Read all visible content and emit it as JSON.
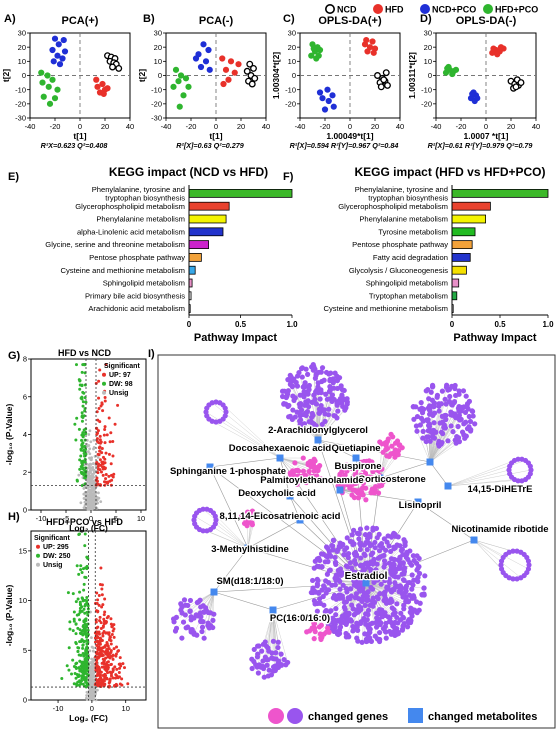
{
  "legend_top": {
    "items": [
      {
        "label": "NCD",
        "color": "#000000",
        "hollow": true
      },
      {
        "label": "HFD",
        "color": "#e8312a",
        "hollow": false
      },
      {
        "label": "NCD+PCO",
        "color": "#1f2fd6",
        "hollow": false
      },
      {
        "label": "HFD+PCO",
        "color": "#2fb52f",
        "hollow": false
      }
    ]
  },
  "chart_data": [
    {
      "id": "A",
      "type": "scatter",
      "panel_label": "A)",
      "title": "PCA(+)",
      "xlabel": "t[1]",
      "ylabel": "t[2]",
      "caption": "R²X=0.623 Q²=0.408",
      "xlim": [
        -40,
        40
      ],
      "ylim": [
        -30,
        30
      ],
      "xticks": [
        -40,
        -20,
        0,
        20,
        40
      ],
      "yticks": [
        -30,
        -20,
        -10,
        0,
        10,
        20,
        30
      ],
      "xtick_labels": [
        "-40",
        "-20",
        "0",
        "20",
        "40"
      ],
      "ytick_labels": [
        "-30",
        "-20",
        "-10",
        "0",
        "10",
        "20",
        "30"
      ],
      "series": [
        {
          "name": "NCD",
          "points": [
            [
              22,
              14
            ],
            [
              25,
              13
            ],
            [
              28,
              12
            ],
            [
              24,
              10
            ],
            [
              27,
              9
            ],
            [
              29,
              8
            ],
            [
              31,
              5
            ],
            [
              26,
              6
            ]
          ]
        },
        {
          "name": "HFD",
          "points": [
            [
              14,
              -8
            ],
            [
              18,
              -6
            ],
            [
              20,
              -10
            ],
            [
              16,
              -12
            ],
            [
              22,
              -9
            ],
            [
              19,
              -13
            ],
            [
              13,
              -3
            ]
          ]
        },
        {
          "name": "NCD+PCO",
          "points": [
            [
              -20,
              26
            ],
            [
              -17,
              22
            ],
            [
              -13,
              25
            ],
            [
              -22,
              18
            ],
            [
              -18,
              14
            ],
            [
              -14,
              12
            ],
            [
              -21,
              10
            ],
            [
              -16,
              8
            ],
            [
              -12,
              17
            ]
          ]
        },
        {
          "name": "HFD+PCO",
          "points": [
            [
              -26,
              0
            ],
            [
              -22,
              -3
            ],
            [
              -30,
              -5
            ],
            [
              -25,
              -8
            ],
            [
              -18,
              -10
            ],
            [
              -29,
              -15
            ],
            [
              -24,
              -20
            ],
            [
              -20,
              -16
            ],
            [
              -31,
              2
            ]
          ]
        }
      ]
    },
    {
      "id": "B",
      "type": "scatter",
      "panel_label": "B)",
      "title": "PCA(-)",
      "xlabel": "t[1]",
      "ylabel": "t[2]",
      "caption": "R²[X]=0.63 Q²=0.279",
      "xlim": [
        -40,
        40
      ],
      "ylim": [
        -30,
        30
      ],
      "xticks": [
        -40,
        -20,
        0,
        20,
        40
      ],
      "yticks": [
        -30,
        -20,
        -10,
        0,
        10,
        20,
        30
      ],
      "xtick_labels": [
        "-40",
        "-20",
        "0",
        "20",
        "40"
      ],
      "ytick_labels": [
        "-30",
        "-20",
        "-10",
        "0",
        "10",
        "20",
        "30"
      ],
      "series": [
        {
          "name": "NCD",
          "points": [
            [
              27,
              8
            ],
            [
              30,
              5
            ],
            [
              25,
              3
            ],
            [
              28,
              0
            ],
            [
              31,
              -2
            ],
            [
              26,
              -4
            ],
            [
              29,
              -6
            ]
          ]
        },
        {
          "name": "HFD",
          "points": [
            [
              5,
              12
            ],
            [
              12,
              10
            ],
            [
              8,
              4
            ],
            [
              15,
              2
            ],
            [
              10,
              -3
            ],
            [
              18,
              8
            ],
            [
              6,
              -6
            ]
          ]
        },
        {
          "name": "NCD+PCO",
          "points": [
            [
              -10,
              22
            ],
            [
              -6,
              18
            ],
            [
              -14,
              15
            ],
            [
              -8,
              10
            ],
            [
              -12,
              6
            ],
            [
              -5,
              4
            ],
            [
              -16,
              12
            ]
          ]
        },
        {
          "name": "HFD+PCO",
          "points": [
            [
              -32,
              4
            ],
            [
              -28,
              0
            ],
            [
              -30,
              -4
            ],
            [
              -24,
              -2
            ],
            [
              -22,
              -8
            ],
            [
              -34,
              -8
            ],
            [
              -26,
              -14
            ],
            [
              -29,
              -22
            ]
          ]
        }
      ]
    },
    {
      "id": "C",
      "type": "scatter",
      "panel_label": "C)",
      "title": "OPLS-DA(+)",
      "xlabel": "1.00049*t[1]",
      "ylabel": "1.00304*t[2]",
      "caption": "R²[X]=0.594 R²[Y]=0.967 Q²=0.84",
      "xlim": [
        -40,
        40
      ],
      "ylim": [
        -30,
        30
      ],
      "xticks": [
        -40,
        -20,
        0,
        20,
        40
      ],
      "yticks": [
        -30,
        -20,
        -10,
        0,
        10,
        20,
        30
      ],
      "xtick_labels": [
        "-40",
        "-20",
        "0",
        "20",
        "40"
      ],
      "ytick_labels": [
        "",
        "-20",
        "-10",
        "0",
        "10",
        "20",
        "30"
      ],
      "series": [
        {
          "name": "NCD",
          "points": [
            [
              22,
              0
            ],
            [
              26,
              -2
            ],
            [
              24,
              -5
            ],
            [
              28,
              -4
            ],
            [
              30,
              -7
            ],
            [
              25,
              -8
            ],
            [
              29,
              2
            ],
            [
              27,
              -3
            ]
          ]
        },
        {
          "name": "HFD",
          "points": [
            [
              12,
              22
            ],
            [
              16,
              20
            ],
            [
              20,
              19
            ],
            [
              14,
              17
            ],
            [
              18,
              24
            ],
            [
              13,
              25
            ],
            [
              19,
              16
            ]
          ]
        },
        {
          "name": "NCD+PCO",
          "points": [
            [
              -18,
              -10
            ],
            [
              -14,
              -14
            ],
            [
              -22,
              -16
            ],
            [
              -17,
              -18
            ],
            [
              -13,
              -22
            ],
            [
              -20,
              -24
            ],
            [
              -24,
              -12
            ]
          ]
        },
        {
          "name": "HFD+PCO",
          "points": [
            [
              -30,
              22
            ],
            [
              -26,
              20
            ],
            [
              -28,
              17
            ],
            [
              -24,
              18
            ],
            [
              -31,
              14
            ],
            [
              -27,
              12
            ],
            [
              -25,
              14
            ],
            [
              -29,
              19
            ]
          ]
        }
      ]
    },
    {
      "id": "D",
      "type": "scatter",
      "panel_label": "D)",
      "title": "OPLS-DA(-)",
      "xlabel": "1.0007 *t[1]",
      "ylabel": "1.00311*t[2]",
      "caption": "R²[X]=0.61 R²[Y]=0.979 Q²=0.79",
      "xlim": [
        -40,
        40
      ],
      "ylim": [
        -30,
        30
      ],
      "xticks": [
        -40,
        -20,
        0,
        20,
        40
      ],
      "yticks": [
        -30,
        -20,
        -10,
        0,
        10,
        20,
        30
      ],
      "xtick_labels": [
        "-40",
        "-20",
        "0",
        "20",
        "40"
      ],
      "ytick_labels": [
        "",
        "-20",
        "-10",
        "0",
        "10",
        "20",
        "30"
      ],
      "series": [
        {
          "name": "NCD",
          "points": [
            [
              20,
              -4
            ],
            [
              23,
              -6
            ],
            [
              26,
              -7
            ],
            [
              22,
              -9
            ],
            [
              25,
              -3
            ],
            [
              28,
              -5
            ],
            [
              24,
              -8
            ]
          ]
        },
        {
          "name": "HFD",
          "points": [
            [
              5,
              16
            ],
            [
              8,
              18
            ],
            [
              11,
              17
            ],
            [
              14,
              19
            ],
            [
              9,
              15
            ],
            [
              12,
              20
            ],
            [
              6,
              19
            ]
          ]
        },
        {
          "name": "NCD+PCO",
          "points": [
            [
              -10,
              -12
            ],
            [
              -8,
              -14
            ],
            [
              -12,
              -16
            ],
            [
              -9,
              -18
            ],
            [
              -7,
              -16
            ],
            [
              -11,
              -13
            ]
          ]
        },
        {
          "name": "HFD+PCO",
          "points": [
            [
              -32,
              2
            ],
            [
              -29,
              4
            ],
            [
              -26,
              3
            ],
            [
              -30,
              6
            ],
            [
              -27,
              1
            ],
            [
              -24,
              4
            ],
            [
              -31,
              5
            ]
          ]
        }
      ]
    },
    {
      "id": "E",
      "type": "bar",
      "orientation": "horizontal",
      "panel_label": "E)",
      "title": "KEGG impact (NCD vs HFD)",
      "xlabel": "Pathway Impact",
      "xlim": [
        0,
        1.0
      ],
      "xticks": [
        0,
        0.5,
        1.0
      ],
      "xtick_labels": [
        "0",
        "0.5",
        "1.0"
      ],
      "categories": [
        "Phenylalanine, tyrosine and tryptophan biosynthesis",
        "Glycerophospholipid metabolism",
        "Phenylalanine metabolism",
        "alpha-Linolenic acid metabolism",
        "Glycine, serine and threonine metabolism",
        "Pentose phosphate pathway",
        "Cysteine and methionine metabolism",
        "Sphingolipid metabolism",
        "Primary bile acid biosynthesis",
        "Arachidonic acid metabolism"
      ],
      "category_labels": [
        [
          "Phenylalanine, tyrosine and",
          "tryptophan biosynthesis"
        ],
        [
          "Glycerophospholipid metabolism"
        ],
        [
          "Phenylalanine metabolism"
        ],
        [
          "alpha-Linolenic acid metabolism"
        ],
        [
          "Glycine, serine and threonine metabolism"
        ],
        [
          "Pentose phosphate pathway"
        ],
        [
          "Cysteine and methionine metabolism"
        ],
        [
          "Sphingolipid metabolism"
        ],
        [
          "Primary bile acid biosynthesis"
        ],
        [
          "Arachidonic acid metabolism"
        ]
      ],
      "values": [
        1.0,
        0.39,
        0.36,
        0.33,
        0.19,
        0.12,
        0.06,
        0.03,
        0.02,
        0.01
      ],
      "colors": [
        "#3cb829",
        "#e8422e",
        "#f4f400",
        "#2233cc",
        "#cc22cc",
        "#f2a23a",
        "#38a8e8",
        "#e890c8",
        "#e8e8e8",
        "#ffffff"
      ]
    },
    {
      "id": "F",
      "type": "bar",
      "orientation": "horizontal",
      "panel_label": "F)",
      "title": "KEGG impact (HFD vs HFD+PCO)",
      "xlabel": "Pathway Impact",
      "xlim": [
        0,
        1.0
      ],
      "xticks": [
        0,
        0.5,
        1.0
      ],
      "xtick_labels": [
        "0",
        "0.5",
        "1.0"
      ],
      "categories": [
        "Phenylalanine, tyrosine and tryptophan biosynthesis",
        "Glycerophospholipid metabolism",
        "Phenylalanine metabolism",
        "Tyrosine metabolism",
        "Pentose phosphate pathway",
        "Fatty acid degradation",
        "Glycolysis / Gluconeogenesis",
        "Sphingolipid metabolism",
        "Tryptophan metabolism",
        "Cysteine and methionine metabolism"
      ],
      "category_labels": [
        [
          "Phenylalanine, tyrosine and",
          "tryptophan biosynthesis"
        ],
        [
          "Glycerophospholipid metabolism"
        ],
        [
          "Phenylalanine metabolism"
        ],
        [
          "Tyrosine metabolism"
        ],
        [
          "Pentose phosphate pathway"
        ],
        [
          "Fatty acid degradation"
        ],
        [
          "Glycolysis / Gluconeogenesis"
        ],
        [
          "Sphingolipid metabolism"
        ],
        [
          "Tryptophan metabolism"
        ],
        [
          "Cysteine and methionine metabolism"
        ]
      ],
      "values": [
        1.0,
        0.4,
        0.35,
        0.24,
        0.21,
        0.19,
        0.15,
        0.07,
        0.05,
        0.01
      ],
      "colors": [
        "#3cb829",
        "#e8422e",
        "#f4f400",
        "#22bb22",
        "#f2a23a",
        "#2233cc",
        "#f4e000",
        "#e890c8",
        "#22aa44",
        "#ffffff"
      ]
    },
    {
      "id": "G",
      "type": "scatter",
      "subtype": "volcano",
      "panel_label": "G)",
      "title": "HFD vs NCD",
      "xlabel": "Log₂ (FC)",
      "ylabel": "-log₁₀ (P-Value)",
      "xlim": [
        -12,
        11
      ],
      "ylim": [
        0,
        8
      ],
      "xticks": [
        -10,
        -5,
        0,
        5,
        10
      ],
      "yticks": [
        0,
        2,
        4,
        6,
        8
      ],
      "xtick_labels": [
        "-10",
        "-5",
        "0",
        "5",
        "10"
      ],
      "ytick_labels": [
        "0",
        "2",
        "4",
        "6",
        "8"
      ],
      "legend": {
        "title": "Significant",
        "up_label": "UP: 97",
        "down_label": "DW: 98",
        "unsig_label": "Unsig",
        "position": "top-right"
      },
      "counts": {
        "up": 97,
        "down": 98
      },
      "up_color": "#e8312a",
      "down_color": "#2fb52f",
      "unsig_color": "#bbbbbb",
      "threshold_y": 1.3,
      "threshold_x": [
        -1,
        1
      ]
    },
    {
      "id": "H",
      "type": "scatter",
      "subtype": "volcano",
      "panel_label": "H)",
      "title": "HFD+PCO vs HFD",
      "xlabel": "Log₂ (FC)",
      "ylabel": "-log₁₀ (P-Value)",
      "xlim": [
        -18,
        16
      ],
      "ylim": [
        0,
        17
      ],
      "xticks": [
        -10,
        0,
        10
      ],
      "yticks": [
        0,
        5,
        10,
        15
      ],
      "xtick_labels": [
        "-10",
        "0",
        "10"
      ],
      "ytick_labels": [
        "0",
        "5",
        "10",
        "15"
      ],
      "legend": {
        "title": "Significant",
        "up_label": "UP: 295",
        "down_label": "DW: 250",
        "unsig_label": "Unsig",
        "position": "top-left"
      },
      "counts": {
        "up": 295,
        "down": 250
      },
      "up_color": "#e8312a",
      "down_color": "#2fb52f",
      "unsig_color": "#bbbbbb",
      "threshold_y": 1.3,
      "threshold_x": [
        -1,
        1
      ]
    }
  ],
  "network": {
    "panel_label": "I)",
    "gene_colors": [
      "#ee55cc",
      "#9955ee"
    ],
    "metabolite_color": "#4488ee",
    "legend": {
      "genes_label": "changed genes",
      "metabolites_label": "changed metabolites"
    },
    "metabolite_labels": [
      "2-Arachidonylglycerol",
      "Docosahexaenoic acid",
      "Quetiapine",
      "Sphinganine 1-phosphate",
      "Buspirone",
      "Corticosterone",
      "Palmitoylethanolamide",
      "Deoxycholic acid",
      "14,15-DiHETrE",
      "Lisinopril",
      "8,11,14-Eicosatrienoic acid",
      "Nicotinamide ribotide",
      "3-Methylhistidine",
      "Estradiol",
      "SM(d18:1/18:0)",
      "PC(16:0/16:0)"
    ]
  }
}
